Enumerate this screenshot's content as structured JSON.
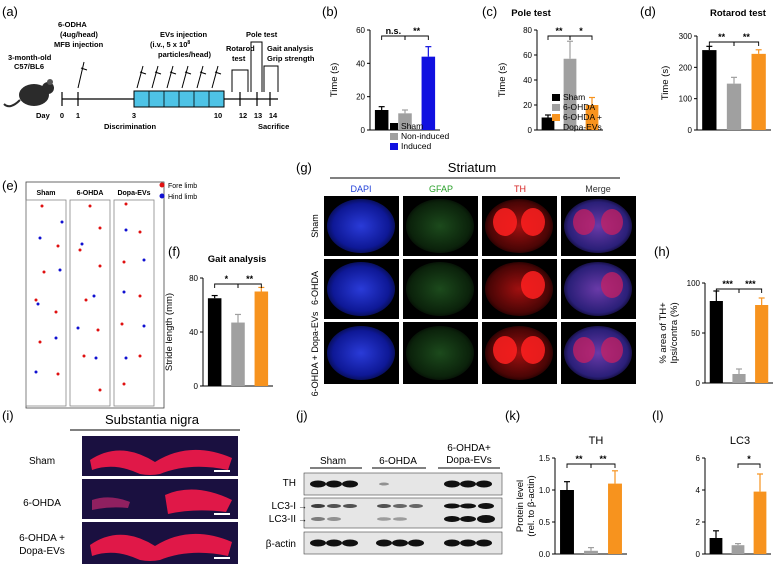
{
  "panels": {
    "a": "(a)",
    "b": "(b)",
    "c": "(c)",
    "d": "(d)",
    "e": "(e)",
    "f": "(f)",
    "g": "(g)",
    "h": "(h)",
    "i": "(i)",
    "j": "(j)",
    "k": "(k)",
    "l": "(l)"
  },
  "timeline": {
    "mouse_label_1": "3-month-old",
    "mouse_label_2": "C57/BL6",
    "ohda_1": "6-ODHA",
    "ohda_2": "(4ug/head)",
    "ohda_3": "MFB injection",
    "evs_1": "EVs injection",
    "evs_2": "(i.v., 5 x 10",
    "evs_exp": "8",
    "evs_3": "particles/head)",
    "rotarod_1": "Rotarod",
    "rotarod_2": "test",
    "pole": "Pole test",
    "gait_1": "Gait analysis",
    "gait_2": "Grip strength",
    "day_label": "Day",
    "days": [
      "0",
      "1",
      "3",
      "10",
      "12",
      "13",
      "14"
    ],
    "discrimination": "Discrimination",
    "sacrifice": "Sacrifice"
  },
  "striatum_title": "Striatum",
  "striatum_cols": [
    "DAPI",
    "GFAP",
    "TH",
    "Merge"
  ],
  "striatum_col_colors": [
    "#1f3fd8",
    "#2aa02a",
    "#d62020",
    "#333333"
  ],
  "group_rows": [
    "Sham",
    "6-OHDA",
    "6-OHDA + Dopa-EVs"
  ],
  "group_rows_i": [
    "Sham",
    "6-OHDA",
    "6-OHDA +",
    "Dopa-EVs"
  ],
  "nigra_title": "Substantia nigra",
  "footprint": {
    "cols": [
      "Sham",
      "6-OHDA",
      "Dopa-EVs"
    ],
    "legend_fore": "Fore limb",
    "legend_hind": "Hind limb"
  },
  "western": {
    "groups": [
      "Sham",
      "6-OHDA",
      "6-OHDA+",
      "Dopa-EVs"
    ],
    "bands": [
      "TH",
      "LC3-I",
      "LC3-II",
      "β-actin"
    ]
  },
  "chart_data": [
    {
      "id": "b",
      "type": "bar",
      "categories": [
        "Sham",
        "Non-induced",
        "Induced"
      ],
      "values": [
        12,
        10,
        44
      ],
      "errors": [
        2,
        2,
        6
      ],
      "colors": [
        "#000000",
        "#a0a0a0",
        "#1010e0"
      ],
      "ylabel": "Time (s)",
      "ylim": [
        0,
        60
      ],
      "yticks": [
        "0",
        "20",
        "40",
        "60"
      ],
      "sig": [
        {
          "label": "n.s.",
          "from": 0,
          "to": 1
        },
        {
          "label": "**",
          "from": 1,
          "to": 2
        }
      ],
      "legend": [
        "Sham",
        "Non-induced",
        "Induced"
      ]
    },
    {
      "id": "c",
      "type": "bar",
      "title": "Pole test",
      "categories": [
        "Sham",
        "6-OHDA",
        "6-OHDA + Dopa-EVs"
      ],
      "values": [
        10,
        57,
        20
      ],
      "errors": [
        2,
        14,
        6
      ],
      "colors": [
        "#000000",
        "#a0a0a0",
        "#f7931e"
      ],
      "ylabel": "Time (s)",
      "ylim": [
        0,
        80
      ],
      "yticks": [
        "0",
        "20",
        "40",
        "60",
        "80"
      ],
      "sig": [
        {
          "label": "**",
          "from": 0,
          "to": 1
        },
        {
          "label": "*",
          "from": 1,
          "to": 2
        }
      ],
      "legend": [
        "Sham",
        "6-OHDA",
        "6-OHDA +",
        "Dopa-EVs"
      ]
    },
    {
      "id": "d",
      "type": "bar",
      "title": "Rotarod test",
      "categories": [
        "Sham",
        "6-OHDA",
        "6-OHDA + Dopa-EVs"
      ],
      "values": [
        255,
        148,
        243
      ],
      "errors": [
        12,
        20,
        13
      ],
      "colors": [
        "#000000",
        "#a0a0a0",
        "#f7931e"
      ],
      "ylabel": "Time (s)",
      "ylim": [
        0,
        300
      ],
      "yticks": [
        "0",
        "100",
        "200",
        "300"
      ],
      "sig": [
        {
          "label": "**",
          "from": 0,
          "to": 1
        },
        {
          "label": "**",
          "from": 1,
          "to": 2
        }
      ]
    },
    {
      "id": "f",
      "type": "bar",
      "title": "Gait analysis",
      "categories": [
        "Sham",
        "6-OHDA",
        "6-OHDA + Dopa-EVs"
      ],
      "values": [
        65,
        47,
        70
      ],
      "errors": [
        2,
        6,
        3
      ],
      "colors": [
        "#000000",
        "#a0a0a0",
        "#f7931e"
      ],
      "ylabel": "Stride length (mm)",
      "ylim": [
        0,
        80
      ],
      "yticks": [
        "0",
        "40",
        "80"
      ],
      "sig": [
        {
          "label": "*",
          "from": 0,
          "to": 1
        },
        {
          "label": "**",
          "from": 1,
          "to": 2
        }
      ]
    },
    {
      "id": "h",
      "type": "bar",
      "categories": [
        "Sham",
        "6-OHDA",
        "6-OHDA + Dopa-EVs"
      ],
      "values": [
        82,
        9,
        78
      ],
      "errors": [
        10,
        5,
        7
      ],
      "colors": [
        "#000000",
        "#a0a0a0",
        "#f7931e"
      ],
      "ylabel": "% area of TH+ Ipsi/contra (%)",
      "ylim": [
        0,
        100
      ],
      "yticks": [
        "0",
        "50",
        "100"
      ],
      "sig": [
        {
          "label": "***",
          "from": 0,
          "to": 1
        },
        {
          "label": "***",
          "from": 1,
          "to": 2
        }
      ]
    },
    {
      "id": "k",
      "type": "bar",
      "title": "TH",
      "categories": [
        "Sham",
        "6-OHDA",
        "6-OHDA + Dopa-EVs"
      ],
      "values": [
        1.0,
        0.05,
        1.1
      ],
      "errors": [
        0.13,
        0.05,
        0.2
      ],
      "colors": [
        "#000000",
        "#a0a0a0",
        "#f7931e"
      ],
      "ylabel": "Protein level (rel. to β-actin)",
      "ylim": [
        0,
        1.5
      ],
      "yticks": [
        "0.0",
        "0.5",
        "1.0",
        "1.5"
      ],
      "sig": [
        {
          "label": "**",
          "from": 0,
          "to": 1
        },
        {
          "label": "**",
          "from": 1,
          "to": 2
        }
      ]
    },
    {
      "id": "l",
      "type": "bar",
      "title": "LC3",
      "categories": [
        "Sham",
        "6-OHDA",
        "6-OHDA + Dopa-EVs"
      ],
      "values": [
        1.0,
        0.55,
        3.9
      ],
      "errors": [
        0.45,
        0.1,
        1.1
      ],
      "colors": [
        "#000000",
        "#a0a0a0",
        "#f7931e"
      ],
      "ylabel": "",
      "ylim": [
        0,
        6
      ],
      "yticks": [
        "0",
        "2",
        "4",
        "6"
      ],
      "sig": [
        {
          "label": "*",
          "from": 1,
          "to": 2
        }
      ]
    }
  ]
}
